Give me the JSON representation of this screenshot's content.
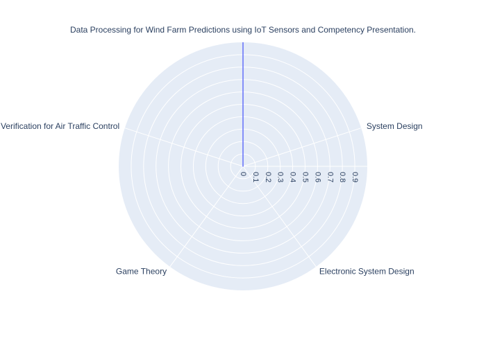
{
  "chart_data": {
    "type": "radar",
    "title": "",
    "categories": [
      "Data Processing for Wind Farm Predictions using IoT Sensors and Competency Presentation.",
      "System Design",
      "Electronic System Design",
      "Game Theory",
      "Formal Verification for Air Traffic Control"
    ],
    "series": [
      {
        "values": [
          1,
          0,
          0,
          0,
          0
        ],
        "color": "#636efa"
      }
    ],
    "radial_range": [
      0,
      1
    ],
    "radial_ticks": [
      0,
      0.1,
      0.2,
      0.3,
      0.4,
      0.5,
      0.6,
      0.7,
      0.8,
      0.9
    ],
    "radial_tick_labels": [
      "0",
      "0.1",
      "0.2",
      "0.3",
      "0.4",
      "0.5",
      "0.6",
      "0.7",
      "0.8",
      "0.9"
    ],
    "grid": true,
    "background_color": "#e5ecf6",
    "grid_color": "#ffffff",
    "text_color": "#2a3f5f"
  }
}
